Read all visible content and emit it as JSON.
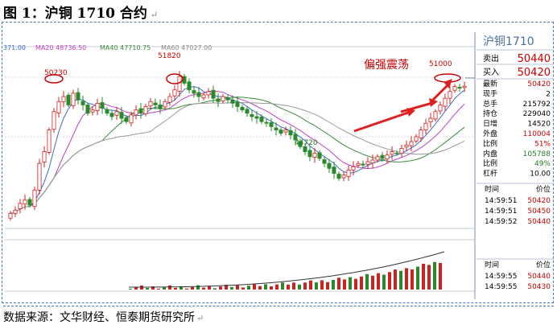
{
  "figure": {
    "title": "图 1：沪铜 1710 合约",
    "para_mark": "↵",
    "source_text": "数据来源：文华财经、恒泰期货研究所",
    "source_mark": "↵"
  },
  "chart_data": {
    "type": "candlestick",
    "ma_legend": [
      {
        "label": "371.00",
        "color": "#3a6fc4"
      },
      {
        "label": "MA20 48736.50",
        "color": "#c040c0"
      },
      {
        "label": "MA40 47710.75",
        "color": "#3a8a3a"
      },
      {
        "label": "MA60 47027.00",
        "color": "#888888"
      }
    ],
    "annotations": [
      {
        "text": "50230",
        "color": "#cc0000"
      },
      {
        "text": "51820",
        "color": "#cc0000"
      },
      {
        "text": "44720",
        "color": "#2a7a2a"
      },
      {
        "text": "51000",
        "color": "#cc0000"
      },
      {
        "text": "偏强震荡",
        "color": "#cc0000"
      }
    ],
    "key_prices": {
      "high_1": 50230,
      "high_2": 51820,
      "low": 44720,
      "high_3": 51000
    },
    "candles_note": "approximate closes read from the chart",
    "closes": [
      42800,
      43000,
      43400,
      43600,
      43300,
      44200,
      45800,
      46500,
      47800,
      48900,
      49500,
      49800,
      49300,
      50000,
      49600,
      49300,
      48800,
      49000,
      49400,
      49100,
      48800,
      48600,
      48900,
      48500,
      48300,
      48700,
      49000,
      48800,
      49200,
      49500,
      49300,
      49100,
      49500,
      49800,
      50200,
      51000,
      50600,
      50200,
      50000,
      49800,
      49900,
      50100,
      49700,
      49500,
      49800,
      49600,
      49400,
      49200,
      49000,
      48800,
      48600,
      48500,
      48300,
      48200,
      48000,
      47800,
      47600,
      47800,
      47500,
      47200,
      46800,
      46500,
      46200,
      46400,
      46100,
      45800,
      45500,
      45200,
      44900,
      45100,
      45400,
      45600,
      45800,
      45700,
      45900,
      46000,
      46200,
      46100,
      46300,
      46500,
      46400,
      46700,
      46900,
      47100,
      47400,
      47800,
      48200,
      48500,
      48900,
      49300,
      49700,
      50100,
      50400,
      50300,
      50420
    ]
  },
  "quote_panel": {
    "contract": "沪铜1710",
    "sell_label": "卖出",
    "sell_value": "50440",
    "buy_label": "买入",
    "buy_value": "50420",
    "rows": [
      {
        "label": "最新",
        "value": "50420",
        "color": "#cc0000"
      },
      {
        "label": "现手",
        "value": "2",
        "color": "#000000"
      },
      {
        "label": "总手",
        "value": "215792",
        "color": "#000000"
      },
      {
        "label": "持仓",
        "value": "229040",
        "color": "#000000"
      },
      {
        "label": "日增",
        "value": "14520",
        "color": "#000000"
      },
      {
        "label": "外盘",
        "value": "110004",
        "color": "#cc0000"
      },
      {
        "label": "比例",
        "value": "51%",
        "color": "#cc0000"
      },
      {
        "label": "内盘",
        "value": "105788",
        "color": "#2a7a2a"
      },
      {
        "label": "比例",
        "value": "49%",
        "color": "#2a7a2a"
      },
      {
        "label": "杠杆",
        "value": "10.00",
        "color": "#000000"
      }
    ],
    "ticks_header": {
      "time": "时间",
      "price": "价位"
    },
    "ticks": [
      {
        "time": "14:59:51",
        "price": "50420"
      },
      {
        "time": "14:59:51",
        "price": "50450"
      },
      {
        "time": "14:59:52",
        "price": "50440"
      }
    ],
    "ticks2_header": {
      "time": "时间",
      "price": "价位"
    },
    "ticks2": [
      {
        "time": "14:59:55",
        "price": "50440"
      },
      {
        "time": "14:59:55",
        "price": "50430"
      }
    ]
  },
  "colors": {
    "up": "#cc2222",
    "down": "#2a8a2a",
    "ma1": "#3a6fc4",
    "ma20": "#c040c0",
    "ma40": "#3a8a3a",
    "ma60": "#999999",
    "grid": "#c8c8d8"
  }
}
